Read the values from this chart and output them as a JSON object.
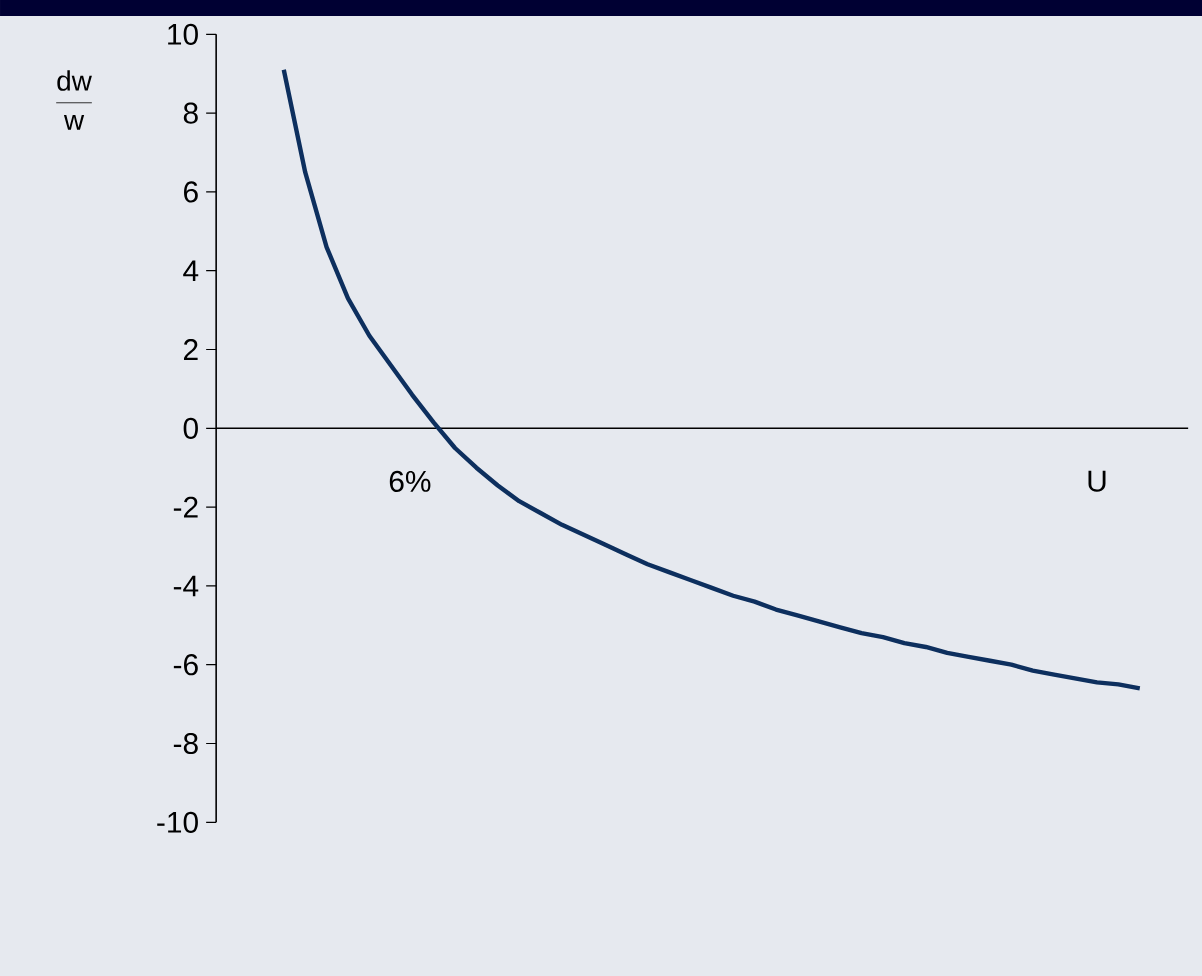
{
  "chart_data": {
    "type": "line",
    "ylabel": "\\frac{\\mathrm{dw}}{\\mathrm{w}}",
    "xlabel": "U",
    "annotations": [
      "6%"
    ],
    "categories": [
      null,
      null,
      null,
      null,
      null,
      null,
      null,
      null,
      null,
      null,
      null,
      null,
      null,
      null,
      null,
      null,
      null,
      null,
      null,
      null,
      null,
      null,
      null,
      null,
      null,
      null,
      null,
      null,
      null,
      null,
      null,
      null,
      null,
      null,
      null,
      null,
      null,
      null,
      null,
      null,
      null
    ],
    "series": [
      {
        "color": "#0d2f5e",
        "values": [
          9.1,
          6.5,
          4.6,
          3.3,
          2.35,
          1.6,
          0.85,
          0.15,
          -0.5,
          -1.0,
          -1.45,
          -1.85,
          -2.15,
          -2.45,
          -2.7,
          -2.95,
          -3.2,
          -3.45,
          -3.65,
          -3.85,
          -4.05,
          -4.25,
          -4.4,
          -4.6,
          -4.75,
          -4.9,
          -5.05,
          -5.2,
          -5.3,
          -5.45,
          -5.55,
          -5.7,
          -5.8,
          -5.9,
          -6.0,
          -6.15,
          -6.25,
          -6.35,
          -6.45,
          -6.5,
          -6.6
        ]
      }
    ],
    "ylim": [
      -10,
      10
    ],
    "yticks": [
      -10,
      -8,
      -6,
      -4,
      -2,
      0,
      2,
      4,
      6,
      8,
      10
    ],
    "tick_labels": "y",
    "marker": "none",
    "line_style": "solid"
  }
}
